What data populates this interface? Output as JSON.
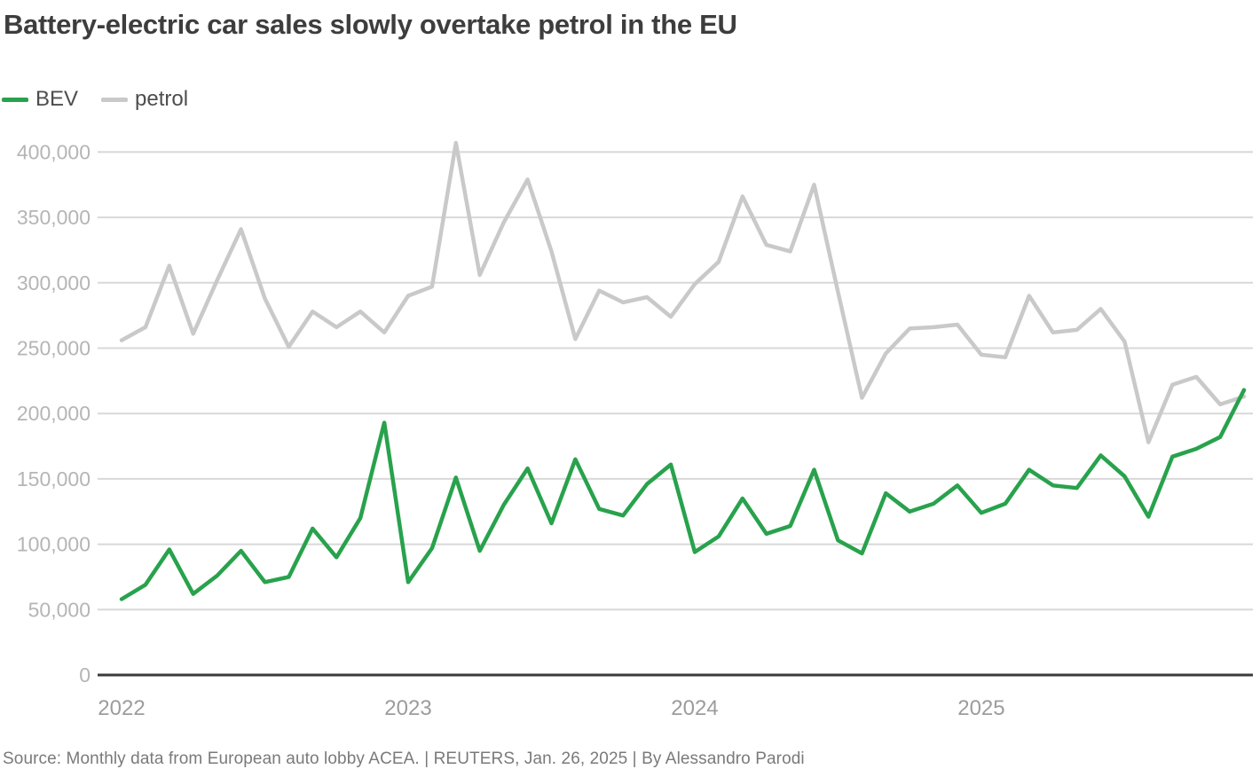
{
  "title": "Battery-electric car sales slowly overtake petrol in the EU",
  "legend": {
    "items": [
      {
        "label": "BEV",
        "color": "#28a24c"
      },
      {
        "label": "petrol",
        "color": "#c9c9c9"
      }
    ]
  },
  "source_line": "Source: Monthly data from European auto lobby ACEA. | REUTERS, Jan. 26, 2025 | By Alessandro Parodi",
  "colors": {
    "bev_line": "#28a24c",
    "petrol_line": "#c9c9c9",
    "gridline": "#d8d8d8",
    "zero_axis": "#3a3a3a",
    "y_tick_text": "#b5b5b5",
    "x_tick_text": "#9c9c9c",
    "title_text": "#3d3d3d",
    "source_text": "#7a7a7a"
  },
  "chart_data": {
    "type": "line",
    "title": "Battery-electric car sales slowly overtake petrol in the EU",
    "xlabel": "",
    "ylabel": "",
    "ylim": [
      0,
      400000
    ],
    "y_tick_interval": 50000,
    "grid": "horizontal",
    "legend_position": "top-left",
    "x_tick_labels": [
      "2022",
      "2023",
      "2024",
      "2025"
    ],
    "y_tick_labels": [
      "0",
      "50,000",
      "100,000",
      "150,000",
      "200,000",
      "250,000",
      "300,000",
      "350,000",
      "400,000"
    ],
    "x": [
      "Jan 2022",
      "Feb 2022",
      "Mar 2022",
      "Apr 2022",
      "May 2022",
      "Jun 2022",
      "Jul 2022",
      "Aug 2022",
      "Sep 2022",
      "Oct 2022",
      "Nov 2022",
      "Dec 2022",
      "Jan 2023",
      "Feb 2023",
      "Mar 2023",
      "Apr 2023",
      "May 2023",
      "Jun 2023",
      "Jul 2023",
      "Aug 2023",
      "Sep 2023",
      "Oct 2023",
      "Nov 2023",
      "Dec 2023",
      "Jan 2024",
      "Feb 2024",
      "Mar 2024",
      "Apr 2024",
      "May 2024",
      "Jun 2024",
      "Jul 2024",
      "Aug 2024",
      "Sep 2024",
      "Oct 2024",
      "Nov 2024",
      "Dec 2024",
      "Jan 2025",
      "Feb 2025",
      "Mar 2025",
      "Apr 2025",
      "May 2025",
      "Jun 2025",
      "Jul 2025",
      "Aug 2025",
      "Sep 2025",
      "Oct 2025",
      "Nov 2025",
      "Dec 2025"
    ],
    "series": [
      {
        "name": "BEV",
        "color": "#28a24c",
        "values": [
          58000,
          69000,
          96000,
          62000,
          76000,
          95000,
          71000,
          75000,
          112000,
          90000,
          120000,
          193000,
          71000,
          97000,
          151000,
          95000,
          130000,
          158000,
          116000,
          165000,
          127000,
          122000,
          146000,
          161000,
          94000,
          106000,
          135000,
          108000,
          114000,
          157000,
          103000,
          93000,
          139000,
          125000,
          131000,
          145000,
          124000,
          131000,
          157000,
          145000,
          143000,
          168000,
          152000,
          121000,
          167000,
          173000,
          182000,
          218000
        ]
      },
      {
        "name": "petrol",
        "color": "#c9c9c9",
        "values": [
          256000,
          266000,
          313000,
          261000,
          302000,
          341000,
          288000,
          251000,
          278000,
          266000,
          278000,
          262000,
          290000,
          297000,
          407000,
          306000,
          346000,
          379000,
          324000,
          257000,
          294000,
          285000,
          289000,
          274000,
          299000,
          316000,
          366000,
          329000,
          324000,
          375000,
          293000,
          212000,
          246000,
          265000,
          266000,
          268000,
          245000,
          243000,
          290000,
          262000,
          264000,
          280000,
          255000,
          178000,
          222000,
          228000,
          207000,
          213000
        ]
      }
    ]
  }
}
